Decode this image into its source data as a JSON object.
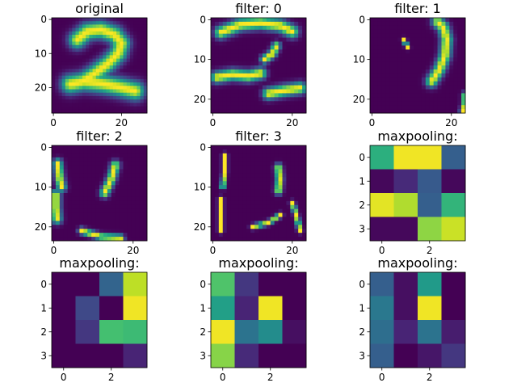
{
  "figure": {
    "background": "#ffffff"
  },
  "colormap": {
    "name": "viridis",
    "stops": [
      "#440154",
      "#482475",
      "#414487",
      "#355f8d",
      "#2a788e",
      "#21918c",
      "#22a884",
      "#44bf70",
      "#7ad151",
      "#bddf26",
      "#fde725"
    ]
  },
  "chart_data": [
    {
      "type": "heatmap",
      "title": "original",
      "xticks": [
        0,
        20
      ],
      "yticks": [
        0,
        10,
        20
      ],
      "extent": [
        28,
        28
      ],
      "strokes": [
        {
          "points": [
            [
              7,
              6
            ],
            [
              10,
              3.5
            ],
            [
              14,
              3
            ],
            [
              18,
              4.5
            ],
            [
              20,
              7
            ],
            [
              19,
              10
            ],
            [
              16,
              13
            ],
            [
              12,
              16
            ],
            [
              8,
              18.5
            ],
            [
              6,
              19
            ]
          ],
          "width": 2.4
        },
        {
          "points": [
            [
              5,
              19
            ],
            [
              9,
              18.2
            ],
            [
              14,
              18.8
            ],
            [
              19,
              19.8
            ],
            [
              24,
              21
            ]
          ],
          "width": 2.6
        }
      ]
    },
    {
      "type": "heatmap",
      "title": "filter: 0",
      "xticks": [
        0,
        20
      ],
      "yticks": [
        0,
        10,
        20
      ],
      "extent": [
        24,
        24
      ],
      "strokes": [
        {
          "points": [
            [
              2,
              3.2
            ],
            [
              7,
              1.2
            ],
            [
              12,
              0.8
            ],
            [
              17,
              1.5
            ],
            [
              20,
              3
            ]
          ],
          "width": 1.5
        },
        {
          "points": [
            [
              1,
              14.5
            ],
            [
              5,
              13.8
            ],
            [
              9,
              14.2
            ],
            [
              12,
              13.5
            ]
          ],
          "width": 1.4
        },
        {
          "points": [
            [
              14,
              18.6
            ],
            [
              18,
              17.8
            ],
            [
              22,
              17.2
            ]
          ],
          "width": 1.4
        },
        {
          "points": [
            [
              13,
              10
            ],
            [
              15,
              8.6
            ],
            [
              16,
              6.6
            ]
          ],
          "width": 1.0
        }
      ]
    },
    {
      "type": "heatmap",
      "title": "filter: 1",
      "xticks": [
        0,
        20
      ],
      "yticks": [
        0,
        10,
        20
      ],
      "extent": [
        24,
        24
      ],
      "strokes": [
        {
          "points": [
            [
              16.5,
              0.5
            ],
            [
              18,
              2
            ],
            [
              18.8,
              5
            ],
            [
              18.4,
              9
            ],
            [
              17,
              12.5
            ],
            [
              15,
              15.5
            ]
          ],
          "width": 1.4
        },
        {
          "points": [
            [
              23.5,
              19
            ],
            [
              23.5,
              21
            ],
            [
              23,
              23
            ]
          ],
          "width": 0.8
        },
        {
          "points": [
            [
              8,
              5
            ],
            [
              9,
              7
            ]
          ],
          "width": 0.5
        }
      ]
    },
    {
      "type": "heatmap",
      "title": "filter: 2",
      "xticks": [
        0,
        20
      ],
      "yticks": [
        0,
        10,
        20
      ],
      "extent": [
        24,
        24
      ],
      "strokes": [
        {
          "points": [
            [
              1,
              4
            ],
            [
              1.5,
              8
            ],
            [
              2,
              10
            ]
          ],
          "width": 1.1
        },
        {
          "points": [
            [
              0.5,
              12
            ],
            [
              0.5,
              15
            ],
            [
              0.8,
              18
            ]
          ],
          "width": 1.2
        },
        {
          "points": [
            [
              15.5,
              4.5
            ],
            [
              14.5,
              8
            ],
            [
              12.8,
              11.5
            ]
          ],
          "width": 1.1
        },
        {
          "points": [
            [
              7,
              21
            ],
            [
              12,
              22.5
            ],
            [
              17,
              22.8
            ]
          ],
          "width": 0.8
        }
      ]
    },
    {
      "type": "heatmap",
      "title": "filter: 3",
      "xticks": [
        0,
        20
      ],
      "yticks": [
        0,
        10,
        20
      ],
      "extent": [
        24,
        24
      ],
      "strokes": [
        {
          "points": [
            [
              16.5,
              5
            ],
            [
              16.8,
              8
            ],
            [
              16.5,
              11
            ]
          ],
          "width": 0.9
        },
        {
          "points": [
            [
              3,
              2
            ],
            [
              3,
              6
            ],
            [
              2.5,
              10
            ]
          ],
          "width": 0.6
        },
        {
          "points": [
            [
              2,
              13
            ],
            [
              2,
              17
            ],
            [
              2,
              21
            ]
          ],
          "width": 0.6
        },
        {
          "points": [
            [
              10,
              20
            ],
            [
              14,
              19
            ],
            [
              17,
              17
            ]
          ],
          "width": 0.6
        },
        {
          "points": [
            [
              20,
              14
            ],
            [
              21,
              17
            ],
            [
              22,
              21
            ]
          ],
          "width": 0.6
        }
      ]
    },
    {
      "type": "heatmap",
      "title": "maxpooling:",
      "xticks": [
        0,
        2
      ],
      "yticks": [
        0,
        1,
        2,
        3
      ],
      "values": [
        [
          0.63,
          0.98,
          0.98,
          0.3
        ],
        [
          0.02,
          0.12,
          0.28,
          0.02
        ],
        [
          0.96,
          0.88,
          0.3,
          0.65
        ],
        [
          0.02,
          0.02,
          0.83,
          0.92
        ]
      ]
    },
    {
      "type": "heatmap",
      "title": "maxpooling:",
      "xticks": [
        0,
        2
      ],
      "yticks": [
        0,
        1,
        2,
        3
      ],
      "values": [
        [
          0.0,
          0.0,
          0.32,
          0.9
        ],
        [
          0.0,
          0.22,
          0.0,
          0.98
        ],
        [
          0.0,
          0.16,
          0.7,
          0.68
        ],
        [
          0.0,
          0.0,
          0.0,
          0.1
        ]
      ]
    },
    {
      "type": "heatmap",
      "title": "maxpooling:",
      "xticks": [
        0,
        2
      ],
      "yticks": [
        0,
        1,
        2,
        3
      ],
      "values": [
        [
          0.72,
          0.16,
          0.0,
          0.0
        ],
        [
          0.56,
          0.1,
          0.98,
          0.0
        ],
        [
          0.98,
          0.38,
          0.48,
          0.04
        ],
        [
          0.82,
          0.12,
          0.0,
          0.0
        ]
      ]
    },
    {
      "type": "heatmap",
      "title": "maxpooling:",
      "xticks": [
        0,
        2
      ],
      "yticks": [
        0,
        1,
        2,
        3
      ],
      "values": [
        [
          0.3,
          0.04,
          0.54,
          0.0
        ],
        [
          0.4,
          0.04,
          0.98,
          0.0
        ],
        [
          0.36,
          0.1,
          0.38,
          0.08
        ],
        [
          0.3,
          0.0,
          0.06,
          0.16
        ]
      ]
    }
  ]
}
